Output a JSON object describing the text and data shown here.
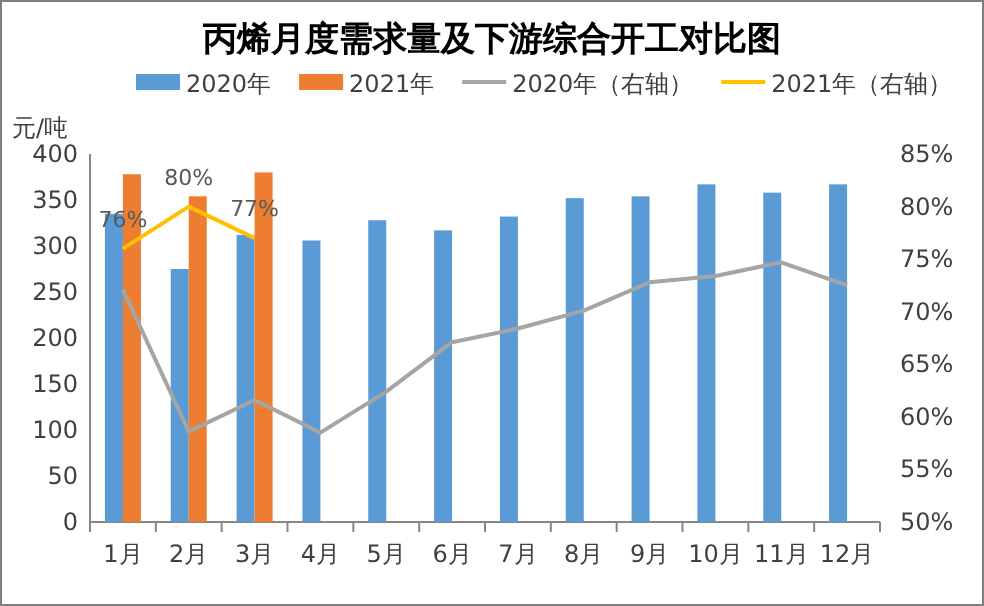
{
  "chart_data": {
    "type": "bar",
    "title": "丙烯月度需求量及下游综合开工对比图",
    "ylabel": "元/吨",
    "categories": [
      "1月",
      "2月",
      "3月",
      "4月",
      "5月",
      "6月",
      "7月",
      "8月",
      "9月",
      "10月",
      "11月",
      "12月"
    ],
    "series": [
      {
        "name": "2020年",
        "type": "bar",
        "color": "#5b9bd5",
        "values": [
          335,
          275,
          312,
          306,
          328,
          317,
          332,
          352,
          354,
          367,
          358,
          367
        ]
      },
      {
        "name": "2021年",
        "type": "bar",
        "color": "#ed7d31",
        "values": [
          378,
          354,
          380,
          null,
          null,
          null,
          null,
          null,
          null,
          null,
          null,
          null
        ]
      },
      {
        "name": "2020年（右轴）",
        "type": "line",
        "axis": "y2",
        "color": "#a5a5a5",
        "values": [
          72.1,
          58.6,
          61.6,
          58.5,
          62.4,
          67.1,
          68.4,
          70.1,
          72.8,
          73.4,
          74.7,
          72.5
        ]
      },
      {
        "name": "2021年（右轴）",
        "type": "line",
        "axis": "y2",
        "color": "#ffc000",
        "values": [
          76,
          80,
          77,
          null,
          null,
          null,
          null,
          null,
          null,
          null,
          null,
          null
        ],
        "value_labels": [
          "76%",
          "80%",
          "77%",
          null,
          null,
          null,
          null,
          null,
          null,
          null,
          null,
          null
        ]
      }
    ],
    "ylim": [
      0,
      400
    ],
    "yticks": [
      0,
      50,
      100,
      150,
      200,
      250,
      300,
      350,
      400
    ],
    "y2lim": [
      50,
      85
    ],
    "y2ticks": [
      {
        "value": 50,
        "label": "50%"
      },
      {
        "value": 55,
        "label": "55%"
      },
      {
        "value": 60,
        "label": "60%"
      },
      {
        "value": 65,
        "label": "65%"
      },
      {
        "value": 70,
        "label": "70%"
      },
      {
        "value": 75,
        "label": "75%"
      },
      {
        "value": 80,
        "label": "80%"
      },
      {
        "value": 85,
        "label": "85%"
      }
    ],
    "grid": false,
    "legend": "top"
  }
}
